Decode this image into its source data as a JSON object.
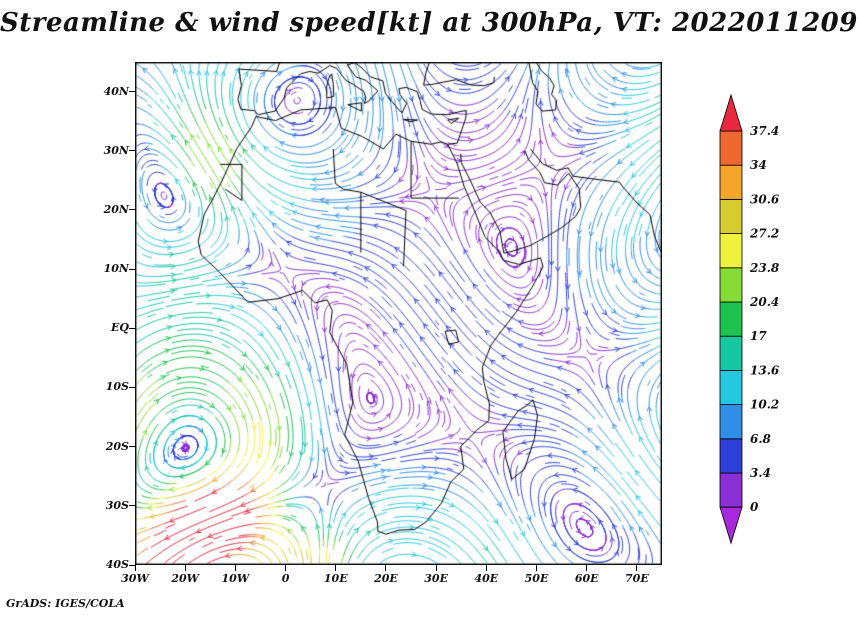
{
  "title": "Streamline & wind speed[kt] at 300hPa, VT: 2022011209",
  "footer": "GrADS: IGES/COLA",
  "axes": {
    "lat_ticks": [
      "40N",
      "30N",
      "20N",
      "10N",
      "EQ",
      "10S",
      "20S",
      "30S",
      "40S"
    ],
    "lat_values": [
      40,
      30,
      20,
      10,
      0,
      -10,
      -20,
      -30,
      -40
    ],
    "lon_ticks": [
      "30W",
      "20W",
      "10W",
      "0",
      "10E",
      "20E",
      "30E",
      "40E",
      "50E",
      "60E",
      "70E"
    ],
    "lon_values": [
      -30,
      -20,
      -10,
      0,
      10,
      20,
      30,
      40,
      50,
      60,
      70
    ]
  },
  "colorbar": {
    "labels": [
      "0",
      "3.4",
      "6.8",
      "10.2",
      "13.6",
      "17",
      "20.4",
      "23.8",
      "27.2",
      "30.6",
      "34",
      "37.4"
    ],
    "levels": [
      0,
      3.4,
      6.8,
      10.2,
      13.6,
      17,
      20.4,
      23.8,
      27.2,
      30.6,
      34,
      37.4
    ],
    "colors": [
      "#8b2fd6",
      "#2f3fd9",
      "#2f8fe8",
      "#25c8e0",
      "#14c8a0",
      "#1ec24e",
      "#86dc36",
      "#eef23e",
      "#d6cc2e",
      "#f5a52a",
      "#ef6830"
    ],
    "over_color": "#e82840",
    "under_color": "#a828dc"
  },
  "chart_data": {
    "type": "streamline",
    "title": "Streamline & wind speed[kt] at 300hPa, VT: 2022011209",
    "variable": "wind speed",
    "units": "kt",
    "level": "300hPa",
    "valid_time": "2022011209",
    "xlabel": "",
    "ylabel": "",
    "x_tick_labels": [
      "30W",
      "20W",
      "10W",
      "0",
      "10E",
      "20E",
      "30E",
      "40E",
      "50E",
      "60E",
      "70E"
    ],
    "y_tick_labels": [
      "40N",
      "30N",
      "20N",
      "10N",
      "EQ",
      "10S",
      "20S",
      "30S",
      "40S"
    ],
    "xlim_deg": [
      -30,
      75
    ],
    "ylim_deg": [
      -40,
      45
    ],
    "grid": false,
    "legend_position": "right-colorbar",
    "speed_levels_kt": [
      0,
      3.4,
      6.8,
      10.2,
      13.6,
      17,
      20.4,
      23.8,
      27.2,
      30.6,
      34,
      37.4
    ],
    "speed_colors": [
      "#8b2fd6",
      "#2f3fd9",
      "#2f8fe8",
      "#25c8e0",
      "#14c8a0",
      "#1ec24e",
      "#86dc36",
      "#eef23e",
      "#d6cc2e",
      "#f5a52a",
      "#ef6830"
    ],
    "under_color": "#a828dc",
    "over_color": "#e82840",
    "credit": "GrADS: IGES/COLA"
  }
}
